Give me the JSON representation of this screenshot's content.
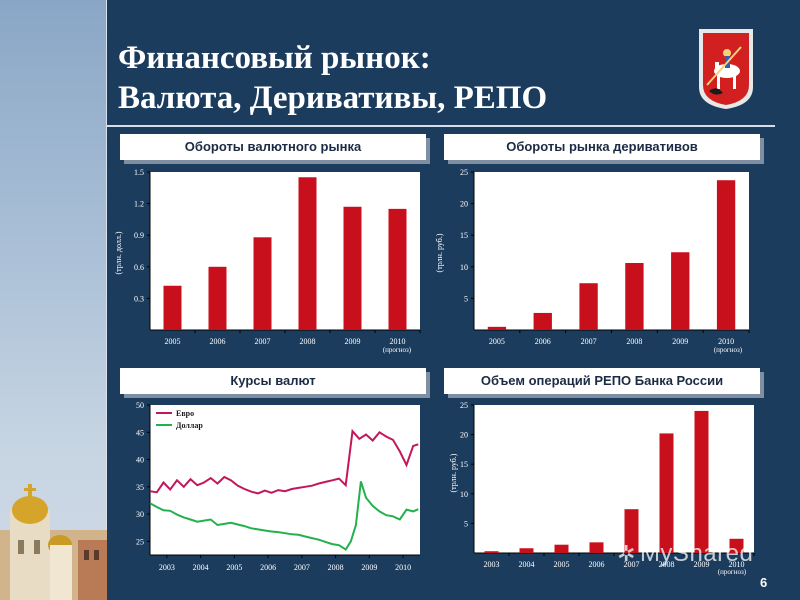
{
  "slide": {
    "title_line1": "Финансовый рынок:",
    "title_line2": "Валюта, Деривативы, РЕПО",
    "page_number": "6",
    "watermark": "MyShared"
  },
  "colors": {
    "background": "#1c3c5e",
    "bar": "#c8101c",
    "euro_line": "#c2185b",
    "dollar_line": "#22b14c",
    "chart_bg": "#ffffff"
  },
  "panels": {
    "fx_turnover": {
      "header": "Обороты валютного рынка"
    },
    "derivatives_turnover": {
      "header": "Обороты рынка деривативов"
    },
    "exchange_rates": {
      "header": "Курсы валют"
    },
    "repo_volume": {
      "header": "Объем операций РЕПО Банка России"
    }
  },
  "chart_data": [
    {
      "id": "fx_turnover",
      "type": "bar",
      "categories": [
        "2005",
        "2006",
        "2007",
        "2008",
        "2009",
        "2010"
      ],
      "category_note": "(прогноз)",
      "values": [
        0.42,
        0.6,
        0.88,
        1.45,
        1.17,
        1.15
      ],
      "ylabel": "(трлн. долл.)",
      "yticks": [
        "0.3",
        "0.6",
        "0.9",
        "1.2",
        "1.5"
      ],
      "ytick_values": [
        0.3,
        0.6,
        0.9,
        1.2,
        1.5
      ],
      "ylim": [
        0,
        1.5
      ],
      "grid": false
    },
    {
      "id": "derivatives_turnover",
      "type": "bar",
      "categories": [
        "2005",
        "2006",
        "2007",
        "2008",
        "2009",
        "2010"
      ],
      "category_note": "(прогноз)",
      "values": [
        0.5,
        2.7,
        7.4,
        10.6,
        12.3,
        23.7
      ],
      "ylabel": "(трлн. руб.)",
      "yticks": [
        "5",
        "10",
        "15",
        "20",
        "25"
      ],
      "ytick_values": [
        5,
        10,
        15,
        20,
        25
      ],
      "ylim": [
        0,
        25
      ],
      "grid": false
    },
    {
      "id": "exchange_rates",
      "type": "line",
      "x_ticks": [
        "2003",
        "2004",
        "2005",
        "2006",
        "2007",
        "2008",
        "2009",
        "2010"
      ],
      "xlim": [
        2002.5,
        2010.5
      ],
      "yticks": [
        "25",
        "30",
        "35",
        "40",
        "45",
        "50"
      ],
      "ytick_values": [
        25,
        30,
        35,
        40,
        45,
        50
      ],
      "ylim": [
        22.5,
        50
      ],
      "legend_placement": "top-left",
      "series": [
        {
          "name": "Евро",
          "color": "#c2185b",
          "x": [
            2002.5,
            2002.7,
            2002.9,
            2003.1,
            2003.3,
            2003.5,
            2003.7,
            2003.9,
            2004.1,
            2004.3,
            2004.5,
            2004.7,
            2004.9,
            2005.1,
            2005.3,
            2005.5,
            2005.7,
            2005.9,
            2006.1,
            2006.3,
            2006.5,
            2006.7,
            2006.9,
            2007.1,
            2007.3,
            2007.5,
            2007.7,
            2007.9,
            2008.1,
            2008.3,
            2008.5,
            2008.7,
            2008.9,
            2009.1,
            2009.3,
            2009.5,
            2009.7,
            2009.9,
            2010.1,
            2010.3,
            2010.45
          ],
          "y": [
            34.2,
            34.0,
            35.8,
            34.5,
            36.2,
            35.0,
            36.4,
            35.3,
            35.8,
            36.6,
            35.6,
            36.8,
            36.2,
            35.2,
            34.6,
            34.1,
            33.8,
            34.3,
            33.9,
            34.4,
            34.2,
            34.6,
            34.8,
            35.0,
            35.2,
            35.6,
            35.9,
            36.2,
            36.5,
            35.3,
            45.2,
            43.8,
            44.6,
            43.5,
            45.0,
            44.2,
            43.6,
            41.5,
            39.0,
            42.5,
            42.8
          ]
        },
        {
          "name": "Доллар",
          "color": "#22b14c",
          "x": [
            2002.5,
            2002.7,
            2002.9,
            2003.1,
            2003.3,
            2003.5,
            2003.7,
            2003.9,
            2004.1,
            2004.3,
            2004.5,
            2004.7,
            2004.9,
            2005.1,
            2005.3,
            2005.5,
            2005.7,
            2005.9,
            2006.1,
            2006.3,
            2006.5,
            2006.7,
            2006.9,
            2007.1,
            2007.3,
            2007.5,
            2007.7,
            2007.9,
            2008.1,
            2008.3,
            2008.45,
            2008.6,
            2008.75,
            2008.9,
            2009.1,
            2009.3,
            2009.5,
            2009.7,
            2009.9,
            2010.1,
            2010.3,
            2010.45
          ],
          "y": [
            32.0,
            31.3,
            30.7,
            30.6,
            29.9,
            29.4,
            29.0,
            28.6,
            28.8,
            29.0,
            28.0,
            28.2,
            28.4,
            28.1,
            27.8,
            27.4,
            27.2,
            27.0,
            26.8,
            26.7,
            26.5,
            26.3,
            26.2,
            25.9,
            25.6,
            25.3,
            24.9,
            24.5,
            24.3,
            23.5,
            25.0,
            28.0,
            36.0,
            33.0,
            31.5,
            30.5,
            29.8,
            29.6,
            29.0,
            30.8,
            30.5,
            30.9
          ]
        }
      ]
    },
    {
      "id": "repo_volume",
      "type": "bar",
      "categories": [
        "2003",
        "2004",
        "2005",
        "2006",
        "2007",
        "2008",
        "2009",
        "2010"
      ],
      "category_note": "(прогноз)",
      "values": [
        0.3,
        0.8,
        1.4,
        1.8,
        7.4,
        20.2,
        24.0,
        2.4
      ],
      "ylabel": "(трлн. руб.)",
      "yticks": [
        "5",
        "10",
        "15",
        "20",
        "25"
      ],
      "ytick_values": [
        5,
        10,
        15,
        20,
        25
      ],
      "ylim": [
        0,
        25
      ],
      "grid": false
    }
  ]
}
